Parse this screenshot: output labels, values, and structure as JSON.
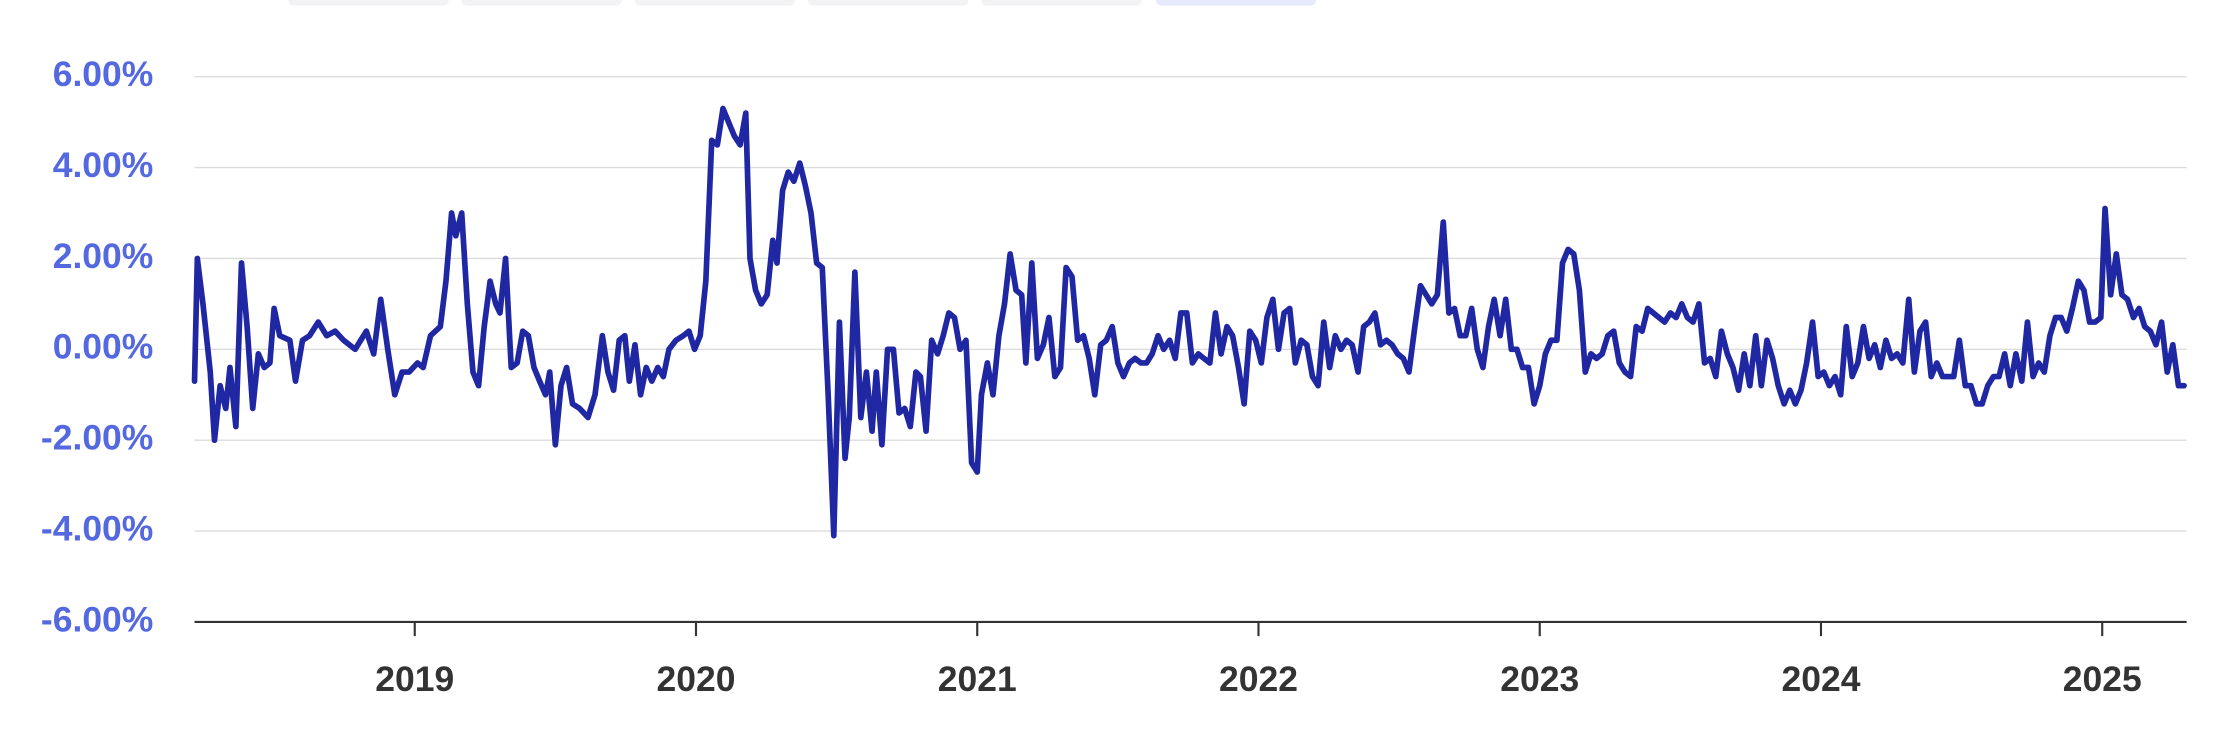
{
  "chart_data": {
    "type": "line",
    "x": [
      2018.217,
      2018.227,
      2018.247,
      2018.273,
      2018.288,
      2018.308,
      2018.328,
      2018.343,
      2018.364,
      2018.384,
      2018.404,
      2018.424,
      2018.444,
      2018.465,
      2018.485,
      2018.5,
      2018.52,
      2018.556,
      2018.576,
      2018.601,
      2018.626,
      2018.657,
      2018.687,
      2018.717,
      2018.747,
      2018.788,
      2018.828,
      2018.854,
      2018.879,
      2018.904,
      2018.929,
      2018.955,
      2018.98,
      2019.01,
      2019.03,
      2019.056,
      2019.091,
      2019.111,
      2019.131,
      2019.146,
      2019.167,
      2019.187,
      2019.207,
      2019.227,
      2019.247,
      2019.268,
      2019.288,
      2019.303,
      2019.323,
      2019.343,
      2019.364,
      2019.384,
      2019.404,
      2019.424,
      2019.444,
      2019.465,
      2019.48,
      2019.5,
      2019.52,
      2019.54,
      2019.561,
      2019.586,
      2019.616,
      2019.641,
      2019.667,
      2019.687,
      2019.707,
      2019.727,
      2019.747,
      2019.763,
      2019.783,
      2019.803,
      2019.823,
      2019.843,
      2019.864,
      2019.884,
      2019.904,
      2019.929,
      2019.955,
      2019.975,
      2019.995,
      2020.015,
      2020.035,
      2020.056,
      2020.076,
      2020.096,
      2020.116,
      2020.136,
      2020.157,
      2020.177,
      2020.192,
      2020.212,
      2020.232,
      2020.253,
      2020.273,
      2020.288,
      2020.308,
      2020.328,
      2020.348,
      2020.369,
      2020.389,
      2020.409,
      2020.429,
      2020.449,
      2020.47,
      2020.49,
      2020.51,
      2020.53,
      2020.545,
      2020.565,
      2020.586,
      2020.606,
      2020.626,
      2020.641,
      2020.661,
      2020.681,
      2020.702,
      2020.722,
      2020.742,
      2020.762,
      2020.782,
      2020.798,
      2020.818,
      2020.838,
      2020.859,
      2020.879,
      2020.899,
      2020.919,
      2020.939,
      2020.96,
      2020.98,
      2021.0,
      2021.015,
      2021.036,
      2021.056,
      2021.077,
      2021.097,
      2021.117,
      2021.138,
      2021.158,
      2021.173,
      2021.194,
      2021.214,
      2021.235,
      2021.255,
      2021.276,
      2021.296,
      2021.316,
      2021.337,
      2021.357,
      2021.378,
      2021.398,
      2021.418,
      2021.439,
      2021.459,
      2021.48,
      2021.5,
      2021.52,
      2021.541,
      2021.561,
      2021.582,
      2021.602,
      2021.622,
      2021.643,
      2021.663,
      2021.684,
      2021.704,
      2021.724,
      2021.745,
      2021.765,
      2021.786,
      2021.806,
      2021.827,
      2021.847,
      2021.867,
      2021.888,
      2021.908,
      2021.929,
      2021.949,
      2021.969,
      2021.99,
      2022.01,
      2022.03,
      2022.051,
      2022.071,
      2022.091,
      2022.111,
      2022.131,
      2022.152,
      2022.172,
      2022.192,
      2022.212,
      2022.232,
      2022.253,
      2022.273,
      2022.293,
      2022.313,
      2022.333,
      2022.354,
      2022.374,
      2022.394,
      2022.414,
      2022.434,
      2022.455,
      2022.475,
      2022.495,
      2022.515,
      2022.535,
      2022.556,
      2022.576,
      2022.596,
      2022.616,
      2022.636,
      2022.657,
      2022.677,
      2022.697,
      2022.717,
      2022.737,
      2022.758,
      2022.778,
      2022.798,
      2022.818,
      2022.838,
      2022.859,
      2022.879,
      2022.899,
      2022.919,
      2022.939,
      2022.96,
      2022.98,
      2023.0,
      2023.02,
      2023.04,
      2023.061,
      2023.081,
      2023.101,
      2023.121,
      2023.141,
      2023.162,
      2023.182,
      2023.202,
      2023.222,
      2023.242,
      2023.263,
      2023.283,
      2023.303,
      2023.323,
      2023.343,
      2023.364,
      2023.384,
      2023.404,
      2023.424,
      2023.444,
      2023.465,
      2023.485,
      2023.505,
      2023.525,
      2023.545,
      2023.566,
      2023.586,
      2023.606,
      2023.626,
      2023.646,
      2023.667,
      2023.687,
      2023.707,
      2023.727,
      2023.747,
      2023.768,
      2023.788,
      2023.808,
      2023.828,
      2023.848,
      2023.869,
      2023.889,
      2023.909,
      2023.929,
      2023.949,
      2023.97,
      2023.99,
      2024.01,
      2024.03,
      2024.05,
      2024.07,
      2024.09,
      2024.111,
      2024.131,
      2024.151,
      2024.171,
      2024.191,
      2024.211,
      2024.231,
      2024.251,
      2024.271,
      2024.291,
      2024.312,
      2024.332,
      2024.352,
      2024.372,
      2024.392,
      2024.412,
      2024.432,
      2024.452,
      2024.472,
      2024.492,
      2024.513,
      2024.533,
      2024.553,
      2024.573,
      2024.593,
      2024.613,
      2024.633,
      2024.653,
      2024.673,
      2024.693,
      2024.714,
      2024.734,
      2024.754,
      2024.774,
      2024.794,
      2024.814,
      2024.834,
      2024.854,
      2024.874,
      2024.894,
      2024.915,
      2024.935,
      2024.955,
      2024.975,
      2024.995,
      2025.01,
      2025.03,
      2025.05,
      2025.07,
      2025.09,
      2025.111,
      2025.131,
      2025.151,
      2025.171,
      2025.191,
      2025.211,
      2025.231,
      2025.251,
      2025.271,
      2025.291
    ],
    "series": [
      {
        "color": "#2027a3",
        "values": [
          -0.7,
          2.0,
          1.0,
          -0.5,
          -2.0,
          -0.8,
          -1.3,
          -0.4,
          -1.7,
          1.9,
          0.5,
          -1.3,
          -0.1,
          -0.4,
          -0.3,
          0.9,
          0.3,
          0.2,
          -0.7,
          0.2,
          0.3,
          0.6,
          0.3,
          0.4,
          0.2,
          0.0,
          0.4,
          -0.1,
          1.1,
          0.0,
          -1.0,
          -0.5,
          -0.5,
          -0.3,
          -0.4,
          0.3,
          0.5,
          1.5,
          3.0,
          2.5,
          3.0,
          1.0,
          -0.5,
          -0.8,
          0.5,
          1.5,
          1.0,
          0.8,
          2.0,
          -0.4,
          -0.3,
          0.4,
          0.3,
          -0.4,
          -0.7,
          -1.0,
          -0.5,
          -2.1,
          -0.8,
          -0.4,
          -1.2,
          -1.3,
          -1.5,
          -1.0,
          0.3,
          -0.5,
          -0.9,
          0.2,
          0.3,
          -0.7,
          0.1,
          -1.0,
          -0.4,
          -0.7,
          -0.4,
          -0.6,
          0.0,
          0.2,
          0.3,
          0.4,
          0.0,
          0.3,
          1.5,
          4.6,
          4.5,
          5.3,
          5.0,
          4.7,
          4.5,
          5.2,
          2.0,
          1.3,
          1.0,
          1.2,
          2.4,
          1.9,
          3.5,
          3.9,
          3.7,
          4.1,
          3.6,
          3.0,
          1.9,
          1.8,
          -1.0,
          -4.1,
          0.6,
          -2.4,
          -1.5,
          1.7,
          -1.5,
          -0.5,
          -1.8,
          -0.5,
          -2.1,
          0.0,
          0.0,
          -1.4,
          -1.3,
          -1.7,
          -0.5,
          -0.6,
          -1.8,
          0.2,
          -0.1,
          0.3,
          0.8,
          0.7,
          0.0,
          0.2,
          -2.5,
          -2.7,
          -1.0,
          -0.3,
          -1.0,
          0.3,
          1.0,
          2.1,
          1.3,
          1.2,
          -0.3,
          1.9,
          -0.2,
          0.1,
          0.7,
          -0.6,
          -0.4,
          1.8,
          1.6,
          0.2,
          0.3,
          -0.2,
          -1.0,
          0.1,
          0.2,
          0.5,
          -0.3,
          -0.6,
          -0.3,
          -0.2,
          -0.3,
          -0.3,
          -0.1,
          0.3,
          0.0,
          0.2,
          -0.2,
          0.8,
          0.8,
          -0.3,
          -0.1,
          -0.2,
          -0.3,
          0.8,
          -0.1,
          0.5,
          0.3,
          -0.4,
          -1.2,
          0.4,
          0.2,
          -0.3,
          0.7,
          1.1,
          0.0,
          0.8,
          0.9,
          -0.3,
          0.2,
          0.1,
          -0.6,
          -0.8,
          0.6,
          -0.4,
          0.3,
          0.0,
          0.2,
          0.1,
          -0.5,
          0.5,
          0.6,
          0.8,
          0.1,
          0.2,
          0.1,
          -0.1,
          -0.2,
          -0.5,
          0.5,
          1.4,
          1.2,
          1.0,
          1.2,
          2.8,
          0.8,
          0.9,
          0.3,
          0.3,
          0.9,
          0.0,
          -0.4,
          0.5,
          1.1,
          0.3,
          1.1,
          0.0,
          0.0,
          -0.4,
          -0.4,
          -1.2,
          -0.8,
          -0.1,
          0.2,
          0.2,
          1.9,
          2.2,
          2.1,
          1.3,
          -0.5,
          -0.1,
          -0.2,
          -0.1,
          0.3,
          0.4,
          -0.3,
          -0.5,
          -0.6,
          0.5,
          0.4,
          0.9,
          0.8,
          0.7,
          0.6,
          0.8,
          0.7,
          1.0,
          0.7,
          0.6,
          1.0,
          -0.3,
          -0.2,
          -0.6,
          0.4,
          -0.1,
          -0.4,
          -0.9,
          -0.1,
          -0.8,
          0.3,
          -0.8,
          0.2,
          -0.2,
          -0.8,
          -1.2,
          -0.9,
          -1.2,
          -0.9,
          -0.3,
          0.6,
          -0.6,
          -0.5,
          -0.8,
          -0.6,
          -1.0,
          0.5,
          -0.6,
          -0.3,
          0.5,
          -0.2,
          0.1,
          -0.4,
          0.2,
          -0.2,
          -0.1,
          -0.3,
          1.1,
          -0.5,
          0.4,
          0.6,
          -0.6,
          -0.3,
          -0.6,
          -0.6,
          -0.6,
          0.2,
          -0.8,
          -0.8,
          -1.2,
          -1.2,
          -0.8,
          -0.6,
          -0.6,
          -0.1,
          -0.8,
          -0.1,
          -0.7,
          0.6,
          -0.6,
          -0.3,
          -0.5,
          0.3,
          0.7,
          0.7,
          0.4,
          0.9,
          1.5,
          1.3,
          0.6,
          0.6,
          0.7,
          3.1,
          1.2,
          2.1,
          1.2,
          1.1,
          0.7,
          0.9,
          0.5,
          0.4,
          0.1,
          0.6,
          -0.5,
          0.1,
          -0.8,
          -0.8
        ]
      }
    ],
    "xlim": [
      2018.217,
      2025.3
    ],
    "xticks": [
      2019,
      2020,
      2021,
      2022,
      2023,
      2024,
      2025
    ],
    "ylim": [
      -6,
      6
    ],
    "yticks": [
      {
        "value": -6,
        "label": "-6.00%"
      },
      {
        "value": -4,
        "label": "-4.00%"
      },
      {
        "value": -2,
        "label": "-2.00%"
      },
      {
        "value": 0,
        "label": "0.00%"
      },
      {
        "value": 2,
        "label": "2.00%"
      },
      {
        "value": 4,
        "label": "4.00%"
      },
      {
        "value": 6,
        "label": "6.00%"
      }
    ],
    "grid": true
  }
}
